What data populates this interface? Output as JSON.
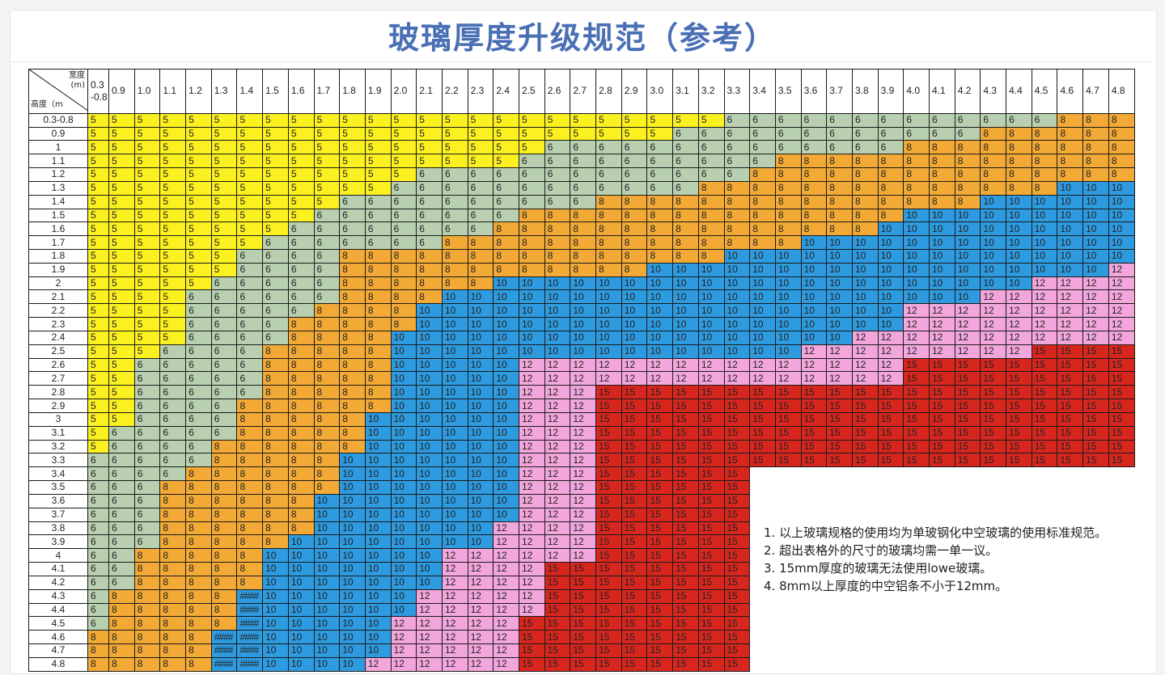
{
  "title": "玻璃厚度升级规范（参考）",
  "table": {
    "corner_width_label_line1": "宽度",
    "corner_width_label_line2": "(m)",
    "corner_height_label": "高度（m",
    "width_headers": [
      "0.3\n-0.8",
      "0.9",
      "1.0",
      "1.1",
      "1.2",
      "1.3",
      "1.4",
      "1.5",
      "1.6",
      "1.7",
      "1.8",
      "1.9",
      "2.0",
      "2.1",
      "2.2",
      "2.3",
      "2.4",
      "2.5",
      "2.6",
      "2.7",
      "2.8",
      "2.9",
      "3.0",
      "3.1",
      "3.2",
      "3.3",
      "3.4",
      "3.5",
      "3.6",
      "3.7",
      "3.8",
      "3.9",
      "4.0",
      "4.1",
      "4.2",
      "4.3",
      "4.4",
      "4.5",
      "4.6",
      "4.7",
      "4.8"
    ],
    "height_labels": [
      "0.3-0.8",
      "0.9",
      "1",
      "1.1",
      "1.2",
      "1.3",
      "1.4",
      "1.5",
      "1.6",
      "1.7",
      "1.8",
      "1.9",
      "2",
      "2.1",
      "2.2",
      "2.3",
      "2.4",
      "2.5",
      "2.6",
      "2.7",
      "2.8",
      "2.9",
      "3",
      "3.1",
      "3.2",
      "3.3",
      "3.4",
      "3.5",
      "3.6",
      "3.7",
      "3.8",
      "3.9",
      "4",
      "4.1",
      "4.2",
      "4.3",
      "4.4",
      "4.5",
      "4.6",
      "4.7",
      "4.8"
    ],
    "overflow_symbol": "####",
    "rows": [
      "5,5,5,5,5,5,5,5,5,5,5,5,5,5,5,5,5,5,5,5,5,5,5,5,5,6,6,6,6,6,6,6,6,6,6,6,6,6,8,8,8",
      "5,5,5,5,5,5,5,5,5,5,5,5,5,5,5,5,5,5,5,5,5,5,5,6,6,6,6,6,6,6,6,6,6,6,6,8,8,8,8,8,8",
      "5,5,5,5,5,5,5,5,5,5,5,5,5,5,5,5,5,5,6,6,6,6,6,6,6,6,6,6,6,6,6,6,8,8,8,8,8,8,8,8,8",
      "5,5,5,5,5,5,5,5,5,5,5,5,5,5,5,5,5,6,6,6,6,6,6,6,6,6,6,8,8,8,8,8,8,8,8,8,8,8,8,8,8",
      "5,5,5,5,5,5,5,5,5,5,5,5,5,6,6,6,6,6,6,6,6,6,6,6,6,6,8,8,8,8,8,8,8,8,8,8,8,8,8,8,8",
      "5,5,5,5,5,5,5,5,5,5,5,5,6,6,6,6,6,6,6,6,6,6,6,6,8,8,8,8,8,8,8,8,8,8,8,8,8,8,10,10,10",
      "5,5,5,5,5,5,5,5,5,5,6,6,6,6,6,6,6,6,6,6,8,8,8,8,8,8,8,8,8,8,8,8,8,8,8,10,10,10,10,10,10",
      "5,5,5,5,5,5,5,5,5,6,6,6,6,6,6,6,6,8,8,8,8,8,8,8,8,8,8,8,8,8,8,8,10,10,10,10,10,10,10,10,10",
      "5,5,5,5,5,5,5,5,6,6,6,6,6,6,6,6,8,8,8,8,8,8,8,8,8,8,8,8,8,8,8,10,10,10,10,10,10,10,10,10,10",
      "5,5,5,5,5,5,5,6,6,6,6,6,6,6,8,8,8,8,8,8,8,8,8,8,8,8,8,8,10,10,10,10,10,10,10,10,10,10,10,10,10",
      "5,5,5,5,5,5,6,6,6,6,8,8,8,8,8,8,8,8,8,8,8,8,8,8,8,10,10,10,10,10,10,10,10,10,10,10,10,10,10,10,10",
      "5,5,5,5,5,5,6,6,6,6,8,8,8,8,8,8,8,8,8,8,8,8,10,10,10,10,10,10,10,10,10,10,10,10,10,10,10,10,10,10,12",
      "5,5,5,5,5,6,6,6,6,6,8,8,8,8,8,8,10,10,10,10,10,10,10,10,10,10,10,10,10,10,10,10,10,10,10,10,10,12,12,12,12",
      "5,5,5,5,6,6,6,6,6,6,8,8,8,8,10,10,10,10,10,10,10,10,10,10,10,10,10,10,10,10,10,10,10,10,10,12,12,12,12,12,12",
      "5,5,5,5,6,6,6,6,6,8,8,8,8,10,10,10,10,10,10,10,10,10,10,10,10,10,10,10,10,10,10,10,12,12,12,12,12,12,12,12,12",
      "5,5,5,5,6,6,6,6,8,8,8,8,8,10,10,10,10,10,10,10,10,10,10,10,10,10,10,10,10,10,10,10,12,12,12,12,12,12,12,12,12",
      "5,5,5,5,6,6,6,6,8,8,8,8,10,10,10,10,10,10,10,10,10,10,10,10,10,10,10,10,10,10,12,12,12,12,12,12,12,12,12,12,12",
      "5,5,5,6,6,6,6,8,8,8,8,8,10,10,10,10,10,10,10,10,10,10,10,10,10,10,10,10,12,12,12,12,12,12,12,12,12,15,15,15,15",
      "5,5,6,6,6,6,6,8,8,8,8,8,10,10,10,10,10,12,12,12,12,12,12,12,12,12,12,12,12,12,12,12,15,15,15,15,15,15,15,15,15",
      "5,5,6,6,6,6,6,8,8,8,8,8,10,10,10,10,10,12,12,12,12,12,12,12,12,12,12,12,12,12,12,12,15,15,15,15,15,15,15,15,15",
      "5,5,6,6,6,6,6,8,8,8,8,8,10,10,10,10,10,12,12,12,15,15,15,15,15,15,15,15,15,15,15,15,15,15,15,15,15,15,15,15,15",
      "5,5,6,6,6,6,8,8,8,8,8,8,10,10,10,10,10,12,12,12,15,15,15,15,15,15,15,15,15,15,15,15,15,15,15,15,15,15,15,15,15",
      "5,5,6,6,6,6,8,8,8,8,8,10,10,10,10,10,10,12,12,12,15,15,15,15,15,15,15,15,15,15,15,15,15,15,15,15,15,15,15,15,15",
      "5,6,6,6,6,6,8,8,8,8,8,10,10,10,10,10,10,12,12,12,15,15,15,15,15,15,15,15,15,15,15,15,15,15,15,15,15,15,15,15,15",
      "5,6,6,6,6,8,8,8,8,8,8,10,10,10,10,10,10,12,12,12,15,15,15,15,15,15,15,15,15,15,15,15,15,15,15,15,15,15,15,15,15",
      "6,6,6,6,6,8,8,8,8,8,10,10,10,10,10,10,10,12,12,12,15,15,15,15,15,15,15,15,15,15,15,15,15,15,15,15,15,15,15,15,15",
      "6,6,6,6,8,8,8,8,8,8,10,10,10,10,10,10,10,12,12,12,15,15,15,15,15,15",
      "6,6,6,8,8,8,8,8,8,8,10,10,10,10,10,10,10,12,12,12,15,15,15,15,15,15",
      "6,6,6,8,8,8,8,8,8,10,10,10,10,10,10,10,10,12,12,12,15,15,15,15,15,15",
      "6,6,6,8,8,8,8,8,8,10,10,10,10,10,10,10,10,12,12,12,15,15,15,15,15,15",
      "6,6,6,8,8,8,8,8,8,10,10,10,10,10,10,10,12,12,12,12,15,15,15,15,15,15",
      "6,6,6,8,8,8,8,8,10,10,10,10,10,10,10,10,12,12,12,12,15,15,15,15,15,15",
      "6,6,8,8,8,8,8,10,10,10,10,10,10,10,12,12,12,12,12,12,15,15,15,15,15,15",
      "6,6,8,8,8,8,8,10,10,10,10,10,10,10,12,12,12,12,15,15,15,15,15,15,15,15",
      "6,6,8,8,8,8,8,10,10,10,10,10,10,10,12,12,12,12,15,15,15,15,15,15,15,15",
      "6,8,8,8,8,8,H,10,10,10,10,10,10,12,12,12,12,12,15,15,15,15,15,15,15,15",
      "6,8,8,8,8,8,H,10,10,10,10,10,10,12,12,12,12,12,15,15,15,15,15,15,15,15",
      "6,8,8,8,8,8,H,10,10,10,10,10,12,12,12,12,12,15,15,15,15,15,15,15,15,15",
      "8,8,8,8,8,H,H,10,10,10,10,10,12,12,12,12,12,15,15,15,15,15,15,15,15,15",
      "8,8,8,8,8,H,H,10,10,10,10,10,12,12,12,12,12,15,15,15,15,15,15,15,15,15",
      "8,8,8,8,8,H,H,10,10,10,10,12,12,12,12,12,12,15,15,15,15,15,15,15,15,15"
    ]
  },
  "colors": {
    "5": "#fbf020",
    "6": "#b8d0b0",
    "8": "#f2a935",
    "10": "#2e9be0",
    "12": "#f2a6dc",
    "15": "#d7261e",
    "title": "#4a6fb5"
  },
  "notes": [
    "1. 以上玻璃规格的使用均为单玻钢化中空玻璃的使用标准规范。",
    "2. 超出表格外的尺寸的玻璃均需一单一议。",
    "3. 15mm厚度的玻璃无法使用lowe玻璃。",
    "4. 8mm以上厚度的中空铝条不小于12mm。"
  ]
}
